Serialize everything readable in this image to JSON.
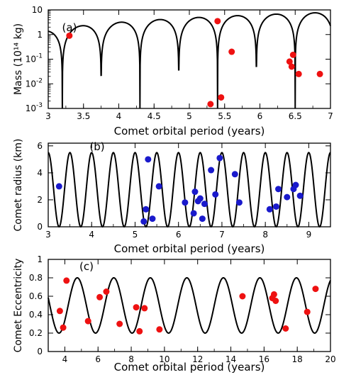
{
  "chart_data": [
    {
      "panel_label": "(a)",
      "type": "scatter",
      "xlabel": "Comet orbital period (years)",
      "ylabel": "Mass (10¹⁴ kg)",
      "xlim": [
        3,
        7
      ],
      "ylim": [
        0.001,
        10
      ],
      "yscale": "log",
      "x_ticks": [
        "3",
        "3.5",
        "4",
        "4.5",
        "5",
        "5.5",
        "6",
        "6.5",
        "7"
      ],
      "y_ticks": [
        {
          "base": "10",
          "exp": ""
        },
        {
          "base": "1",
          "exp": ""
        },
        {
          "base": "10",
          "exp": "-1"
        },
        {
          "base": "10",
          "exp": "-2"
        },
        {
          "base": "10",
          "exp": "-3"
        }
      ],
      "marker_color": "#ee1111",
      "curve_color": "#000000",
      "curve": {
        "kind": "abs-sine-log",
        "period": 0.55,
        "phase_zero": 3.2,
        "amp_start": 1.5,
        "amp_end": 8.0
      },
      "points": [
        [
          3.3,
          0.9
        ],
        [
          5.4,
          3.5
        ],
        [
          5.6,
          0.2
        ],
        [
          5.3,
          0.0015
        ],
        [
          5.45,
          0.0028
        ],
        [
          6.42,
          0.08
        ],
        [
          6.45,
          0.05
        ],
        [
          6.47,
          0.15
        ],
        [
          6.55,
          0.025
        ],
        [
          6.85,
          0.025
        ]
      ]
    },
    {
      "panel_label": "(b)",
      "type": "scatter",
      "xlabel": "Comet orbital period (years)",
      "ylabel": "Comet radius (km)",
      "xlim": [
        3,
        9.5
      ],
      "ylim": [
        0,
        6.2
      ],
      "x_ticks": [
        "3",
        "4",
        "5",
        "6",
        "7",
        "8",
        "9"
      ],
      "y_ticks": [
        "0",
        "2",
        "4",
        "6"
      ],
      "marker_color": "#1a1acc",
      "curve_color": "#000000",
      "curve": {
        "kind": "cosine",
        "period": 0.5,
        "phase_zero": 3.0,
        "amp": 5.5
      },
      "points": [
        [
          3.25,
          3.0
        ],
        [
          5.2,
          0.4
        ],
        [
          5.25,
          1.3
        ],
        [
          5.3,
          5.0
        ],
        [
          5.4,
          0.6
        ],
        [
          5.55,
          3.0
        ],
        [
          6.15,
          1.8
        ],
        [
          6.35,
          1.0
        ],
        [
          6.38,
          2.6
        ],
        [
          6.45,
          1.9
        ],
        [
          6.5,
          2.1
        ],
        [
          6.55,
          0.6
        ],
        [
          6.6,
          1.7
        ],
        [
          6.75,
          4.2
        ],
        [
          6.85,
          2.4
        ],
        [
          6.95,
          5.1
        ],
        [
          7.3,
          3.9
        ],
        [
          7.4,
          1.8
        ],
        [
          8.1,
          1.3
        ],
        [
          8.25,
          1.5
        ],
        [
          8.3,
          2.8
        ],
        [
          8.5,
          2.2
        ],
        [
          8.65,
          2.8
        ],
        [
          8.7,
          3.1
        ],
        [
          8.8,
          2.3
        ]
      ]
    },
    {
      "panel_label": "(c)",
      "type": "scatter",
      "xlabel": "Comet orbital period (years)",
      "ylabel": "Comet Eccentricity",
      "xlim": [
        3,
        20
      ],
      "ylim": [
        0,
        1
      ],
      "x_ticks": [
        "4",
        "6",
        "8",
        "10",
        "12",
        "14",
        "16",
        "18",
        "20"
      ],
      "y_ticks": [
        "0",
        "0.2",
        "0.4",
        "0.6",
        "0.8",
        "1"
      ],
      "marker_color": "#ee1111",
      "curve_color": "#000000",
      "curve": {
        "kind": "sine",
        "period": 2.2,
        "phase_zero": 4.2,
        "center": 0.5,
        "amp": 0.3
      },
      "points": [
        [
          3.7,
          0.44
        ],
        [
          3.9,
          0.26
        ],
        [
          4.1,
          0.77
        ],
        [
          5.4,
          0.33
        ],
        [
          6.1,
          0.59
        ],
        [
          6.5,
          0.65
        ],
        [
          7.3,
          0.3
        ],
        [
          8.3,
          0.48
        ],
        [
          8.5,
          0.22
        ],
        [
          8.8,
          0.47
        ],
        [
          9.7,
          0.24
        ],
        [
          14.7,
          0.6
        ],
        [
          16.5,
          0.58
        ],
        [
          16.6,
          0.62
        ],
        [
          16.7,
          0.55
        ],
        [
          17.3,
          0.25
        ],
        [
          18.6,
          0.43
        ],
        [
          19.1,
          0.68
        ]
      ]
    }
  ]
}
